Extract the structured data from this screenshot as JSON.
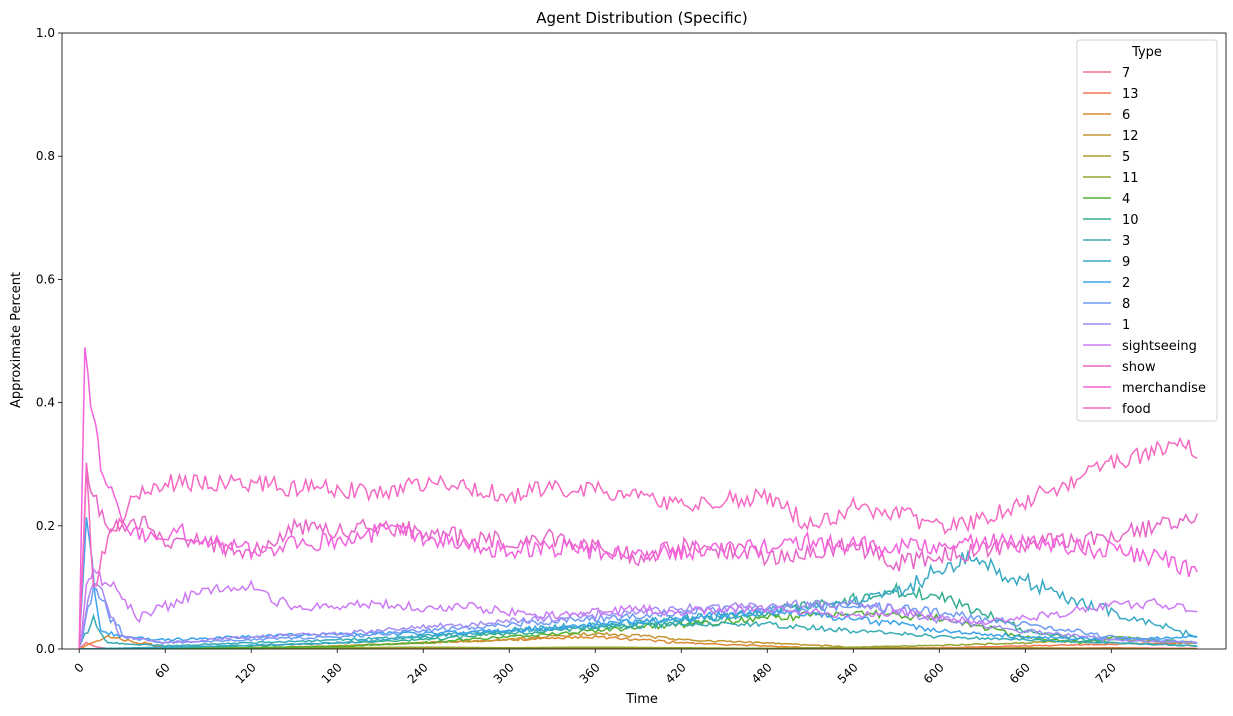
{
  "chart_data": {
    "type": "line",
    "title": "Agent Distribution (Specific)",
    "xlabel": "Time",
    "ylabel": "Approximate Percent",
    "xlim": [
      -12,
      800
    ],
    "ylim": [
      0,
      1
    ],
    "xticks": [
      0,
      60,
      120,
      180,
      240,
      300,
      360,
      420,
      480,
      540,
      600,
      660,
      720
    ],
    "yticks": [
      0.0,
      0.2,
      0.4,
      0.6,
      0.8,
      1.0
    ],
    "xtick_labels": [
      "0",
      "60",
      "120",
      "180",
      "240",
      "300",
      "360",
      "420",
      "480",
      "540",
      "600",
      "660",
      "720"
    ],
    "ytick_labels": [
      "0.0",
      "0.2",
      "0.4",
      "0.6",
      "0.8",
      "1.0"
    ],
    "grid": false,
    "legend": {
      "title": "Type",
      "placement": "top-right"
    },
    "series": [
      {
        "name": "7",
        "color": "#f77189",
        "x": [
          0,
          5,
          10,
          20,
          40,
          60,
          120,
          180,
          240,
          300,
          360,
          420,
          480,
          540,
          600,
          660,
          720,
          780
        ],
        "y": [
          0,
          0.01,
          0.005,
          0,
          0,
          0.002,
          0.001,
          0,
          0.001,
          0.002,
          0.001,
          0,
          0.001,
          0.002,
          0.001,
          0.001,
          0.002,
          0.001
        ]
      },
      {
        "name": "13",
        "color": "#f7754f",
        "x": [
          0,
          60,
          120,
          180,
          240,
          300,
          360,
          420,
          480,
          540,
          600,
          660,
          720,
          780
        ],
        "y": [
          0,
          0,
          0.001,
          0,
          0.001,
          0,
          0.001,
          0.001,
          0,
          0.001,
          0.002,
          0.005,
          0.008,
          0.01
        ]
      },
      {
        "name": "6",
        "color": "#dc8932",
        "x": [
          0,
          20,
          60,
          120,
          180,
          240,
          300,
          360,
          420,
          480,
          510,
          540,
          600,
          660,
          720,
          780
        ],
        "y": [
          0,
          0.02,
          0.003,
          0.002,
          0.005,
          0.01,
          0.015,
          0.02,
          0.01,
          0.005,
          0.002,
          0.001,
          0.001,
          0,
          0.001,
          0
        ]
      },
      {
        "name": "12",
        "color": "#c39532",
        "x": [
          0,
          60,
          120,
          180,
          240,
          300,
          360,
          400,
          420,
          480,
          540,
          600,
          660,
          720,
          780
        ],
        "y": [
          0,
          0.001,
          0.002,
          0.005,
          0.01,
          0.015,
          0.025,
          0.02,
          0.015,
          0.01,
          0.003,
          0.001,
          0,
          0.001,
          0
        ]
      },
      {
        "name": "5",
        "color": "#ae9d31",
        "x": [
          0,
          60,
          120,
          180,
          240,
          300,
          360,
          420,
          480,
          540,
          600,
          660,
          720,
          780
        ],
        "y": [
          0,
          0,
          0.001,
          0.001,
          0.002,
          0.001,
          0.002,
          0.001,
          0.001,
          0.002,
          0.001,
          0.002,
          0.001,
          0
        ]
      },
      {
        "name": "11",
        "color": "#97a431",
        "x": [
          0,
          60,
          120,
          180,
          240,
          300,
          360,
          420,
          480,
          540,
          600,
          660,
          720,
          780
        ],
        "y": [
          0,
          0,
          0.001,
          0.002,
          0.003,
          0.002,
          0.003,
          0.002,
          0.001,
          0.003,
          0.006,
          0.01,
          0.015,
          0.01
        ]
      },
      {
        "name": "4",
        "color": "#50b131",
        "x": [
          0,
          60,
          120,
          180,
          240,
          300,
          360,
          420,
          480,
          540,
          600,
          660,
          700,
          720,
          780
        ],
        "y": [
          0,
          0.001,
          0.002,
          0.004,
          0.01,
          0.02,
          0.03,
          0.04,
          0.05,
          0.06,
          0.05,
          0.02,
          0.01,
          0.02,
          0.01
        ]
      },
      {
        "name": "10",
        "color": "#34ae91",
        "x": [
          0,
          60,
          120,
          180,
          240,
          300,
          360,
          420,
          480,
          540,
          570,
          600,
          630,
          660,
          720,
          780
        ],
        "y": [
          0,
          0.002,
          0.005,
          0.01,
          0.015,
          0.025,
          0.035,
          0.045,
          0.06,
          0.08,
          0.095,
          0.085,
          0.06,
          0.03,
          0.01,
          0.005
        ]
      },
      {
        "name": "3",
        "color": "#37abb4",
        "x": [
          0,
          10,
          20,
          60,
          120,
          180,
          240,
          300,
          360,
          420,
          480,
          540,
          600,
          660,
          720,
          780
        ],
        "y": [
          0,
          0.05,
          0.01,
          0.005,
          0.01,
          0.015,
          0.02,
          0.03,
          0.035,
          0.04,
          0.04,
          0.03,
          0.02,
          0.015,
          0.01,
          0.005
        ]
      },
      {
        "name": "9",
        "color": "#38a9c5",
        "x": [
          0,
          60,
          120,
          180,
          240,
          300,
          360,
          420,
          480,
          540,
          580,
          600,
          620,
          650,
          680,
          720,
          780
        ],
        "y": [
          0,
          0.003,
          0.006,
          0.01,
          0.02,
          0.03,
          0.04,
          0.05,
          0.06,
          0.075,
          0.1,
          0.13,
          0.145,
          0.12,
          0.09,
          0.06,
          0.02
        ]
      },
      {
        "name": "2",
        "color": "#3ba3ec",
        "x": [
          0,
          5,
          15,
          30,
          60,
          120,
          180,
          240,
          300,
          360,
          420,
          480,
          540,
          600,
          660,
          720,
          780
        ],
        "y": [
          0,
          0.2,
          0.03,
          0.02,
          0.015,
          0.02,
          0.025,
          0.025,
          0.03,
          0.04,
          0.05,
          0.06,
          0.05,
          0.03,
          0.02,
          0.015,
          0.02
        ]
      },
      {
        "name": "8",
        "color": "#6e9bf4",
        "x": [
          0,
          10,
          30,
          60,
          120,
          180,
          240,
          300,
          360,
          420,
          480,
          540,
          600,
          660,
          720,
          780
        ],
        "y": [
          0,
          0.1,
          0.02,
          0.01,
          0.015,
          0.02,
          0.03,
          0.04,
          0.05,
          0.06,
          0.065,
          0.07,
          0.06,
          0.04,
          0.02,
          0.01
        ]
      },
      {
        "name": "1",
        "color": "#a48cf4",
        "x": [
          0,
          10,
          30,
          60,
          120,
          180,
          240,
          300,
          360,
          420,
          480,
          540,
          600,
          660,
          720,
          780
        ],
        "y": [
          0,
          0.12,
          0.02,
          0.01,
          0.02,
          0.025,
          0.035,
          0.045,
          0.055,
          0.065,
          0.07,
          0.075,
          0.05,
          0.03,
          0.015,
          0.01
        ]
      },
      {
        "name": "sightseeing",
        "color": "#cc7af4",
        "x": [
          0,
          5,
          10,
          20,
          30,
          40,
          60,
          90,
          120,
          150,
          180,
          210,
          240,
          270,
          300,
          330,
          360,
          390,
          420,
          450,
          480,
          510,
          540,
          570,
          600,
          630,
          660,
          690,
          720,
          750,
          780
        ],
        "y": [
          0,
          0.1,
          0.12,
          0.11,
          0.09,
          0.05,
          0.07,
          0.095,
          0.1,
          0.065,
          0.07,
          0.075,
          0.065,
          0.07,
          0.06,
          0.055,
          0.06,
          0.065,
          0.06,
          0.065,
          0.065,
          0.06,
          0.055,
          0.06,
          0.05,
          0.045,
          0.05,
          0.06,
          0.07,
          0.075,
          0.06
        ]
      },
      {
        "name": "show",
        "color": "#e866c8",
        "x": [
          0,
          5,
          10,
          20,
          40,
          60,
          90,
          120,
          150,
          180,
          210,
          240,
          270,
          300,
          330,
          360,
          390,
          420,
          450,
          480,
          510,
          540,
          570,
          600,
          630,
          660,
          690,
          720,
          750,
          780
        ],
        "y": [
          0,
          0.3,
          0.25,
          0.2,
          0.21,
          0.18,
          0.17,
          0.155,
          0.2,
          0.19,
          0.2,
          0.19,
          0.18,
          0.175,
          0.18,
          0.165,
          0.15,
          0.165,
          0.16,
          0.15,
          0.16,
          0.165,
          0.14,
          0.15,
          0.16,
          0.17,
          0.175,
          0.18,
          0.2,
          0.22
        ]
      },
      {
        "name": "merchandise",
        "color": "#f461dd",
        "x": [
          0,
          4,
          8,
          15,
          30,
          50,
          70,
          90,
          120,
          150,
          180,
          210,
          240,
          270,
          300,
          330,
          360,
          390,
          420,
          450,
          480,
          510,
          540,
          570,
          600,
          630,
          660,
          690,
          720,
          750,
          780
        ],
        "y": [
          0,
          0.5,
          0.4,
          0.3,
          0.2,
          0.18,
          0.19,
          0.17,
          0.16,
          0.17,
          0.175,
          0.19,
          0.18,
          0.17,
          0.16,
          0.165,
          0.16,
          0.155,
          0.16,
          0.16,
          0.165,
          0.175,
          0.17,
          0.165,
          0.17,
          0.175,
          0.17,
          0.165,
          0.16,
          0.15,
          0.125
        ]
      },
      {
        "name": "food",
        "color": "#f668c2",
        "x": [
          0,
          5,
          10,
          20,
          40,
          60,
          90,
          120,
          150,
          180,
          210,
          240,
          270,
          300,
          330,
          360,
          390,
          420,
          450,
          480,
          510,
          540,
          570,
          600,
          630,
          660,
          690,
          720,
          750,
          770,
          780
        ],
        "y": [
          0,
          0.3,
          0.1,
          0.18,
          0.25,
          0.27,
          0.27,
          0.27,
          0.26,
          0.26,
          0.25,
          0.27,
          0.26,
          0.25,
          0.26,
          0.26,
          0.25,
          0.23,
          0.24,
          0.25,
          0.2,
          0.23,
          0.22,
          0.2,
          0.21,
          0.24,
          0.27,
          0.3,
          0.32,
          0.34,
          0.31
        ]
      }
    ]
  }
}
